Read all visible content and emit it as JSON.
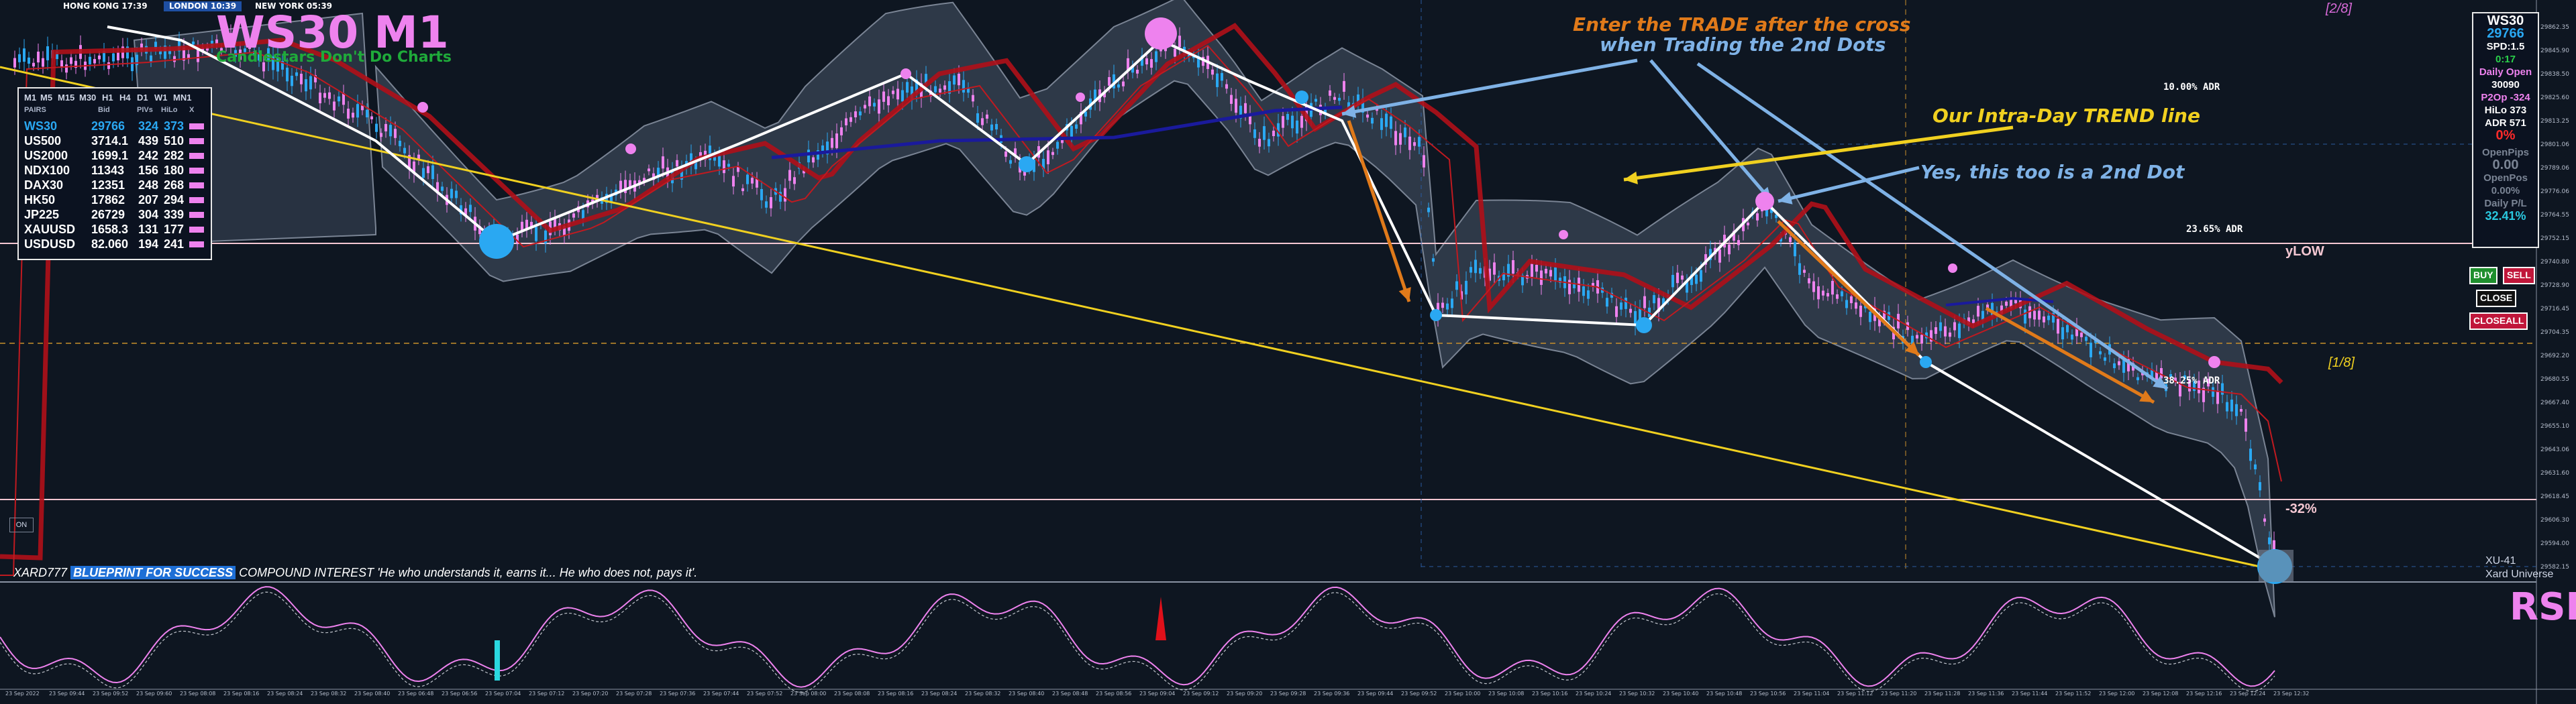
{
  "sessions": [
    {
      "label": "HONG KONG 17:39",
      "color": "#b5121b"
    },
    {
      "label": "LONDON 10:39",
      "color": "#1e4fa3"
    },
    {
      "label": "NEW YORK 05:39",
      "color": "#b5121b"
    }
  ],
  "symbol_title": "WS30 M1",
  "motto": "Candlestars Don't Do Charts",
  "pairs_table": {
    "timeframes": [
      "M1",
      "M5",
      "M15",
      "M30",
      "H1",
      "H4",
      "D1",
      "W1",
      "MN1"
    ],
    "headers": [
      "PAIRS",
      "Bid",
      "PIVs",
      "HiLo",
      "X"
    ],
    "rows": [
      {
        "pair": "WS30",
        "bid": "29766",
        "piv": "324",
        "hilo": "373",
        "highlight": true
      },
      {
        "pair": "US500",
        "bid": "3714.1",
        "piv": "439",
        "hilo": "510"
      },
      {
        "pair": "US2000",
        "bid": "1699.1",
        "piv": "242",
        "hilo": "282"
      },
      {
        "pair": "NDX100",
        "bid": "11343",
        "piv": "156",
        "hilo": "180"
      },
      {
        "pair": "DAX30",
        "bid": "12351",
        "piv": "248",
        "hilo": "268"
      },
      {
        "pair": "HK50",
        "bid": "17862",
        "piv": "207",
        "hilo": "294"
      },
      {
        "pair": "JP225",
        "bid": "26729",
        "piv": "304",
        "hilo": "339"
      },
      {
        "pair": "XAUUSD",
        "bid": "1658.3",
        "piv": "131",
        "hilo": "177"
      },
      {
        "pair": "USDUSD",
        "bid": "82.060",
        "piv": "194",
        "hilo": "241"
      }
    ]
  },
  "annotations": {
    "enter_trade_1": "Enter the TRADE after the cross",
    "enter_trade_2": "when Trading the 2nd Dots",
    "trend_line": "Our Intra-Day TREND line",
    "second_dot": "Yes, this too is a 2nd Dot"
  },
  "adr_labels": {
    "adr10": "10.00% ADR",
    "adr23": "23.65% ADR",
    "adr38": "38.25% ADR"
  },
  "level_labels": {
    "ylow": "yLOW",
    "neg32": "-32%",
    "murrey_top": "[2/8]",
    "murrey_mid": "[1/8]",
    "xu": "XU-41",
    "xard": "Xard Universe"
  },
  "info_panel": {
    "symbol": "WS30",
    "price": "29766",
    "spd": "SPD:1.5",
    "timer": "0:17",
    "daily_open_label": "Daily Open",
    "daily_open": "30090",
    "p2op": "P2Op  -324",
    "hilo": "HiLo   373",
    "adr": "ADR    571",
    "percent": "0%",
    "open_pips_label": "OpenPips",
    "open_pips": "0.00",
    "open_pos_label": "OpenPos",
    "open_pos": "0.00%",
    "daily_pl_label": "Daily P/L",
    "daily_pl": "32.41%"
  },
  "buttons": {
    "buy": "BUY",
    "sell": "SELL",
    "close": "CLOSE",
    "closeall": "CLOSEALL",
    "on": "ON"
  },
  "ticker": {
    "prefix": "XARD777",
    "highlight": "BLUEPRINT FOR SUCCESS",
    "text": "COMPOUND INTEREST 'He who understands it, earns it... He who does not, pays it'."
  },
  "rsi_label": "RSI",
  "price_axis": [
    "29862.35",
    "29845.90",
    "29838.50",
    "29825.60",
    "29813.25",
    "29801.06",
    "29789.06",
    "29776.06",
    "29764.55",
    "29752.15",
    "29740.80",
    "29728.90",
    "29716.45",
    "29704.35",
    "29692.20",
    "29680.55",
    "29667.40",
    "29655.10",
    "29643.06",
    "29631.60",
    "29618.45",
    "29606.30",
    "29594.00",
    "29582.15"
  ],
  "time_axis": [
    "23 Sep 2022",
    "23 Sep 09:44",
    "23 Sep 09:52",
    "23 Sep 09:60",
    "23 Sep 08:08",
    "23 Sep 08:16",
    "23 Sep 08:24",
    "23 Sep 08:32",
    "23 Sep 08:40",
    "23 Sep 06:48",
    "23 Sep 06:56",
    "23 Sep 07:04",
    "23 Sep 07:12",
    "23 Sep 07:20",
    "23 Sep 07:28",
    "23 Sep 07:36",
    "23 Sep 07:44",
    "23 Sep 07:52",
    "23 Sep 08:00",
    "23 Sep 08:08",
    "23 Sep 08:16",
    "23 Sep 08:24",
    "23 Sep 08:32",
    "23 Sep 08:40",
    "23 Sep 08:48",
    "23 Sep 08:56",
    "23 Sep 09:04",
    "23 Sep 09:12",
    "23 Sep 09:20",
    "23 Sep 09:28",
    "23 Sep 09:36",
    "23 Sep 09:44",
    "23 Sep 09:52",
    "23 Sep 10:00",
    "23 Sep 10:08",
    "23 Sep 10:16",
    "23 Sep 10:24",
    "23 Sep 10:32",
    "23 Sep 10:40",
    "23 Sep 10:48",
    "23 Sep 10:56",
    "23 Sep 11:04",
    "23 Sep 11:12",
    "23 Sep 11:20",
    "23 Sep 11:28",
    "23 Sep 11:36",
    "23 Sep 11:44",
    "23 Sep 11:52",
    "23 Sep 12:00",
    "23 Sep 12:08",
    "23 Sep 12:16",
    "23 Sep 12:24",
    "23 Sep 12:32"
  ],
  "colors": {
    "bull": "#2aa8f2",
    "bear": "#ee82ee",
    "band": "#5f6b7a",
    "ma_red": "#b01018",
    "ma_blue": "#1a1a9c",
    "trend": "#f0d020",
    "annot_orange": "#e07a1a",
    "annot_blue": "#7fb2e6"
  }
}
